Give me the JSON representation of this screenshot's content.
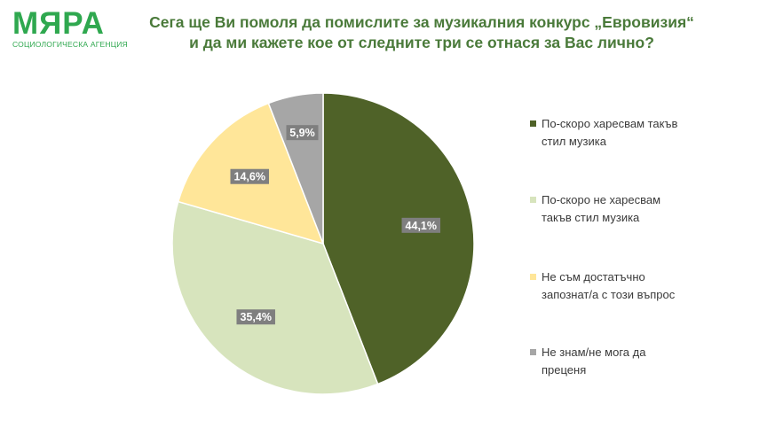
{
  "logo": {
    "name": "МЯРА",
    "subtitle": "СОЦИОЛОГИЧЕСКА АГЕНЦИЯ"
  },
  "title": {
    "line1": "Сега ще Ви помоля да помислите за музикалния конкурс „Евровизия“",
    "line2": "и да ми кажете кое от следните три се отнася за Вас лично?"
  },
  "chart_data": {
    "type": "pie",
    "title": "Сега ще Ви помоля да помислите за музикалния конкурс „Евровизия“ и да ми кажете кое от следните три се отнася за Вас лично?",
    "legend_position": "right",
    "slices": [
      {
        "label": "По-скоро харесвам такъв стил музика",
        "value": 44.1,
        "display": "44,1%",
        "color": "#4f6228"
      },
      {
        "label": "По-скоро не харесвам такъв стил музика",
        "value": 35.4,
        "display": "35,4%",
        "color": "#d7e4bd"
      },
      {
        "label": "Не съм достатъчно запознат/а с този въпрос",
        "value": 14.6,
        "display": "14,6%",
        "color": "#ffe699"
      },
      {
        "label": "Не знам/не мога да преценя",
        "value": 5.9,
        "display": "5,9%",
        "color": "#a6a6a6"
      }
    ]
  },
  "legend": {
    "items": [
      {
        "line1": "По-скоро харесвам такъв",
        "line2": "стил музика",
        "color": "#4f6228"
      },
      {
        "line1": "По-скоро не харесвам",
        "line2": "такъв стил музика",
        "color": "#d7e4bd"
      },
      {
        "line1": "Не съм достатъчно",
        "line2": "запознат/а с този въпрос",
        "color": "#ffe699"
      },
      {
        "line1": "Не знам/не мога да",
        "line2": "преценя",
        "color": "#a6a6a6"
      }
    ]
  }
}
